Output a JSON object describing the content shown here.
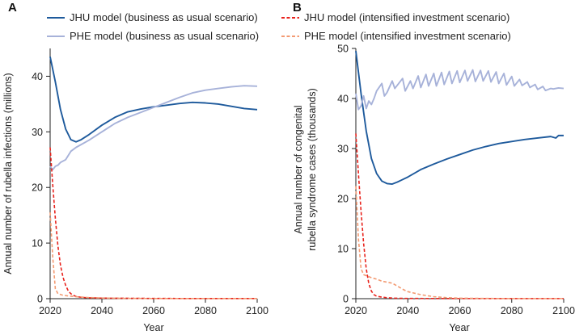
{
  "legend": [
    {
      "label": "JHU model (business as usual scenario)",
      "color": "#1e5a9c",
      "dash": false
    },
    {
      "label": "PHE model (business as usual scenario)",
      "color": "#a7b2d9",
      "dash": false
    },
    {
      "label": "JHU model (intensified investment scenario)",
      "color": "#e8221c",
      "dash": true
    },
    {
      "label": "PHE model (intensified investment scenario)",
      "color": "#f39a72",
      "dash": true
    }
  ],
  "chart_data": [
    {
      "type": "line",
      "panel_label": "A",
      "xlabel": "Year",
      "ylabel": "Annual number of rubella infections (millions)",
      "xlim": [
        2020,
        2100
      ],
      "ylim": [
        0,
        45
      ],
      "xticks": [
        "2020",
        "2040",
        "2060",
        "2080",
        "2100"
      ],
      "yticks": [
        "0",
        "10",
        "20",
        "30",
        "40"
      ],
      "series": [
        {
          "name": "JHU model (business as usual scenario)",
          "color": "#1e5a9c",
          "dash": false,
          "x": [
            2020,
            2022,
            2024,
            2026,
            2028,
            2030,
            2032,
            2035,
            2040,
            2045,
            2050,
            2055,
            2060,
            2065,
            2070,
            2075,
            2080,
            2085,
            2090,
            2095,
            2100
          ],
          "values": [
            43.5,
            39.0,
            34.0,
            30.5,
            28.6,
            28.2,
            28.6,
            29.5,
            31.2,
            32.6,
            33.6,
            34.1,
            34.5,
            34.8,
            35.1,
            35.3,
            35.2,
            35.0,
            34.6,
            34.2,
            34.0
          ]
        },
        {
          "name": "PHE model (business as usual scenario)",
          "color": "#a7b2d9",
          "dash": false,
          "x": [
            2020,
            2021,
            2022,
            2023,
            2024,
            2026,
            2028,
            2030,
            2035,
            2040,
            2045,
            2050,
            2055,
            2060,
            2065,
            2070,
            2075,
            2080,
            2085,
            2090,
            2095,
            2100
          ],
          "values": [
            23.8,
            23.2,
            23.8,
            24.0,
            24.5,
            25.0,
            26.5,
            27.2,
            28.5,
            30.0,
            31.5,
            32.6,
            33.5,
            34.4,
            35.3,
            36.2,
            37.0,
            37.5,
            37.8,
            38.1,
            38.3,
            38.2
          ]
        },
        {
          "name": "JHU model (intensified investment scenario)",
          "color": "#e8221c",
          "dash": true,
          "x": [
            2020,
            2021,
            2022,
            2023,
            2024,
            2025,
            2026,
            2027,
            2028,
            2029,
            2030,
            2032,
            2035,
            2040,
            2060,
            2080,
            2100
          ],
          "values": [
            27.2,
            20.5,
            14.5,
            9.5,
            6.0,
            3.8,
            2.4,
            1.4,
            0.9,
            0.6,
            0.4,
            0.25,
            0.15,
            0.1,
            0.05,
            0.02,
            0.02
          ]
        },
        {
          "name": "PHE model (intensified investment scenario)",
          "color": "#f39a72",
          "dash": true,
          "x": [
            2020,
            2021,
            2022,
            2023,
            2025,
            2028,
            2030,
            2035,
            2040,
            2050,
            2060,
            2080,
            2100
          ],
          "values": [
            15.5,
            7.5,
            1.8,
            0.9,
            0.6,
            0.45,
            0.35,
            0.2,
            0.12,
            0.05,
            0.03,
            0.02,
            0.02
          ]
        }
      ]
    },
    {
      "type": "line",
      "panel_label": "B",
      "xlabel": "Year",
      "ylabel": "Annual number of congenital rubella syndrome cases (thousands)",
      "ylabel_lines": [
        "Annual number of congenital",
        "rubella syndrome cases (thousands)"
      ],
      "xlim": [
        2020,
        2100
      ],
      "ylim": [
        0,
        50
      ],
      "xticks": [
        "2020",
        "2040",
        "2060",
        "2080",
        "2100"
      ],
      "yticks": [
        "0",
        "10",
        "20",
        "30",
        "40",
        "50"
      ],
      "series": [
        {
          "name": "JHU model (business as usual scenario)",
          "color": "#1e5a9c",
          "dash": false,
          "x": [
            2020,
            2022,
            2024,
            2026,
            2028,
            2030,
            2032,
            2034,
            2036,
            2038,
            2040,
            2045,
            2050,
            2055,
            2060,
            2065,
            2070,
            2075,
            2080,
            2085,
            2090,
            2095,
            2097,
            2098,
            2100
          ],
          "values": [
            49.5,
            41.0,
            33.5,
            28.0,
            25.0,
            23.5,
            23.0,
            22.9,
            23.3,
            23.8,
            24.3,
            25.8,
            26.9,
            27.9,
            28.8,
            29.7,
            30.4,
            31.0,
            31.4,
            31.8,
            32.1,
            32.4,
            32.1,
            32.6,
            32.6
          ]
        },
        {
          "name": "PHE model (business as usual scenario)",
          "color": "#a7b2d9",
          "dash": false,
          "x": [
            2020,
            2021,
            2022,
            2023,
            2024,
            2025,
            2026,
            2027,
            2028,
            2030,
            2031,
            2032,
            2034,
            2035,
            2038,
            2039,
            2041,
            2042,
            2044,
            2045,
            2047,
            2048,
            2050,
            2051,
            2053,
            2054,
            2056,
            2057,
            2059,
            2060,
            2062,
            2063,
            2065,
            2066,
            2068,
            2069,
            2071,
            2072,
            2074,
            2075,
            2077,
            2078,
            2080,
            2081,
            2083,
            2084,
            2086,
            2087,
            2089,
            2090,
            2092,
            2093,
            2095,
            2096,
            2098,
            2100
          ],
          "values": [
            41.0,
            37.8,
            38.5,
            40.5,
            38.0,
            39.5,
            38.8,
            40.0,
            41.5,
            43.0,
            40.5,
            41.2,
            43.5,
            42.0,
            44.0,
            41.5,
            43.5,
            42.0,
            44.5,
            42.2,
            44.8,
            42.5,
            45.0,
            42.5,
            45.2,
            42.8,
            45.4,
            43.0,
            45.5,
            43.2,
            45.6,
            43.5,
            45.7,
            43.4,
            45.6,
            43.5,
            45.5,
            43.3,
            45.3,
            43.0,
            45.0,
            42.7,
            44.4,
            42.5,
            43.8,
            42.6,
            43.3,
            42.2,
            42.8,
            41.8,
            42.4,
            41.6,
            42.0,
            41.9,
            42.1,
            42.0
          ]
        },
        {
          "name": "JHU model (intensified investment scenario)",
          "color": "#e8221c",
          "dash": true,
          "x": [
            2020,
            2021,
            2022,
            2023,
            2024,
            2025,
            2026,
            2027,
            2028,
            2030,
            2032,
            2035,
            2040,
            2060,
            2080,
            2100
          ],
          "values": [
            33.0,
            25.0,
            17.5,
            11.0,
            6.0,
            3.0,
            1.5,
            0.8,
            0.5,
            0.3,
            0.2,
            0.1,
            0.05,
            0.02,
            0.02,
            0.02
          ]
        },
        {
          "name": "PHE model (intensified investment scenario)",
          "color": "#f39a72",
          "dash": true,
          "x": [
            2020,
            2021,
            2022,
            2023,
            2024,
            2026,
            2028,
            2030,
            2032,
            2034,
            2036,
            2038,
            2040,
            2045,
            2050,
            2055,
            2060,
            2070,
            2080,
            2100
          ],
          "values": [
            22.5,
            12.0,
            6.0,
            4.8,
            4.6,
            4.2,
            3.9,
            3.5,
            3.3,
            3.1,
            2.5,
            1.9,
            1.4,
            0.8,
            0.4,
            0.2,
            0.1,
            0.05,
            0.02,
            0.02
          ]
        }
      ]
    }
  ]
}
